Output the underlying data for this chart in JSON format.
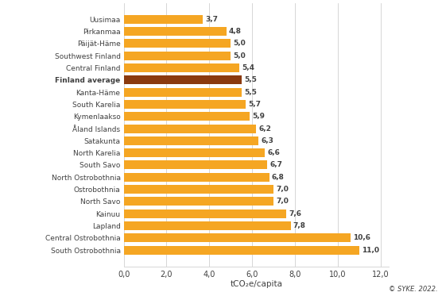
{
  "categories": [
    "Uusimaa",
    "Pirkanmaa",
    "Päijät-Häme",
    "Southwest Finland",
    "Central Finland",
    "Finland average",
    "Kanta-Häme",
    "South Karelia",
    "Kymenlaakso",
    "Åland Islands",
    "Satakunta",
    "North Karelia",
    "South Savo",
    "North Ostrobothnia",
    "Ostrobothnia",
    "North Savo",
    "Kainuu",
    "Lapland",
    "Central Ostrobothnia",
    "South Ostrobothnia"
  ],
  "values": [
    3.7,
    4.8,
    5.0,
    5.0,
    5.4,
    5.5,
    5.5,
    5.7,
    5.9,
    6.2,
    6.3,
    6.6,
    6.7,
    6.8,
    7.0,
    7.0,
    7.6,
    7.8,
    10.6,
    11.0
  ],
  "labels": [
    "3,7",
    "4,8",
    "5,0",
    "5,0",
    "5,4",
    "5,5",
    "5,5",
    "5,7",
    "5,9",
    "6,2",
    "6,3",
    "6,6",
    "6,7",
    "6,8",
    "7,0",
    "7,0",
    "7,6",
    "7,8",
    "10,6",
    "11,0"
  ],
  "bar_colors": [
    "#F5A623",
    "#F5A623",
    "#F5A623",
    "#F5A623",
    "#F5A623",
    "#8B3A0F",
    "#F5A623",
    "#F5A623",
    "#F5A623",
    "#F5A623",
    "#F5A623",
    "#F5A623",
    "#F5A623",
    "#F5A623",
    "#F5A623",
    "#F5A623",
    "#F5A623",
    "#F5A623",
    "#F5A623",
    "#F5A623"
  ],
  "xlabel": "tCO₂e/capita",
  "xlim": [
    0,
    12.4
  ],
  "xticks": [
    0.0,
    2.0,
    4.0,
    6.0,
    8.0,
    10.0,
    12.0
  ],
  "xtick_labels": [
    "0,0",
    "2,0",
    "4,0",
    "6,0",
    "8,0",
    "10,0",
    "12,0"
  ],
  "finland_average_index": 5,
  "copyright_text": "© SYKE. 2022.",
  "background_color": "#ffffff",
  "grid_color": "#d0d0d0",
  "label_color": "#404040",
  "bar_height": 0.72
}
